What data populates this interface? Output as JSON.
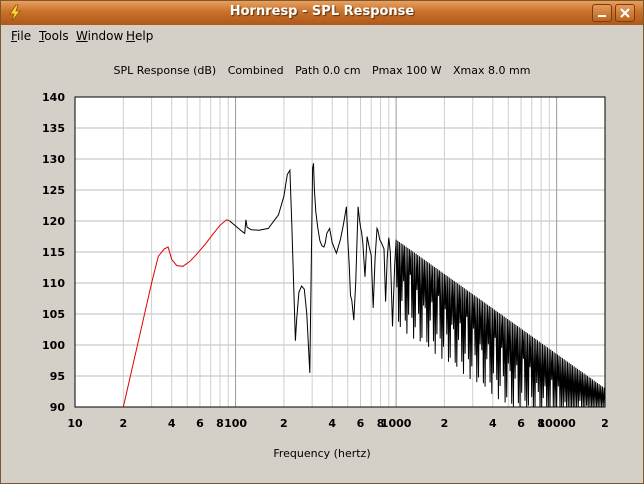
{
  "window": {
    "title": "Hornresp - SPL Response",
    "icon": "lightning-icon",
    "minimize_icon": "minimize-icon",
    "close_icon": "close-icon"
  },
  "menu": {
    "items": [
      {
        "label": "File",
        "accel": "F"
      },
      {
        "label": "Tools",
        "accel": "T"
      },
      {
        "label": "Window",
        "accel": "W"
      },
      {
        "label": "Help",
        "accel": "H"
      }
    ]
  },
  "header": {
    "metric": "SPL Response (dB)",
    "mode": "Combined",
    "path": "Path 0.0 cm",
    "pmax": "Pmax 100 W",
    "xmax": "Xmax 8.0 mm"
  },
  "chart_data": {
    "type": "line",
    "xlabel": "Frequency (hertz)",
    "xscale": "log",
    "xlim": [
      10,
      20000
    ],
    "ylim": [
      90,
      140
    ],
    "grid": true,
    "yticks": [
      140,
      135,
      130,
      125,
      120,
      115,
      110,
      105,
      100,
      95,
      90
    ],
    "xticks": [
      {
        "value": 10,
        "label": "10"
      },
      {
        "value": 20,
        "label": "2"
      },
      {
        "value": 40,
        "label": "4"
      },
      {
        "value": 60,
        "label": "6"
      },
      {
        "value": 80,
        "label": "8"
      },
      {
        "value": 100,
        "label": "100"
      },
      {
        "value": 200,
        "label": "2"
      },
      {
        "value": 400,
        "label": "4"
      },
      {
        "value": 600,
        "label": "6"
      },
      {
        "value": 800,
        "label": "8"
      },
      {
        "value": 1000,
        "label": "1000"
      },
      {
        "value": 2000,
        "label": "2"
      },
      {
        "value": 4000,
        "label": "4"
      },
      {
        "value": 6000,
        "label": "6"
      },
      {
        "value": 8000,
        "label": "8"
      },
      {
        "value": 10000,
        "label": "10000"
      },
      {
        "value": 20000,
        "label": "2"
      }
    ],
    "series": [
      {
        "color": "#e00000",
        "x": [
          20,
          25,
          30,
          33,
          36,
          38,
          40,
          43,
          47,
          52,
          58,
          65,
          72,
          80,
          88,
          92
        ],
        "y": [
          90,
          101,
          110,
          114.3,
          115.5,
          115.8,
          113.8,
          112.8,
          112.7,
          113.5,
          114.8,
          116.3,
          117.8,
          119.3,
          120.2,
          120.0
        ]
      },
      {
        "color": "#000000",
        "x": [
          92,
          100,
          110,
          114,
          116,
          118,
          125,
          140,
          160,
          185,
          200,
          210,
          218,
          224,
          230,
          236,
          240,
          248,
          258,
          268,
          278,
          290,
          298,
          302,
          306,
          310,
          316,
          325,
          335,
          345,
          355,
          362,
          370,
          385,
          400,
          425,
          450,
          470,
          490,
          500,
          510,
          520,
          530,
          545,
          560,
          580,
          590,
          600,
          610,
          620,
          640,
          660,
          680,
          700,
          720,
          740,
          760,
          770,
          790,
          810,
          840,
          860,
          880,
          900,
          920,
          950,
          980,
          1000
        ],
        "y": [
          120.0,
          119.2,
          118.3,
          118.0,
          120.2,
          119.0,
          118.6,
          118.5,
          118.8,
          121.0,
          124.0,
          127.5,
          128.2,
          119.5,
          110.0,
          100.7,
          104.0,
          108.5,
          109.5,
          109.0,
          105.0,
          95.5,
          118.0,
          128.5,
          129.3,
          125.0,
          121.5,
          119.0,
          116.8,
          116.0,
          115.8,
          116.5,
          118.0,
          118.8,
          116.5,
          114.8,
          117.0,
          119.5,
          122.3,
          117.0,
          113.0,
          108.0,
          107.2,
          104.0,
          110.0,
          122.3,
          120.5,
          119.0,
          118.2,
          116.5,
          111.0,
          117.5,
          115.8,
          114.5,
          106.0,
          114.0,
          118.8,
          118.5,
          117.0,
          116.5,
          115.5,
          107.0,
          114.0,
          117.3,
          115.0,
          103.0,
          113.0,
          116.8
        ]
      }
    ]
  }
}
